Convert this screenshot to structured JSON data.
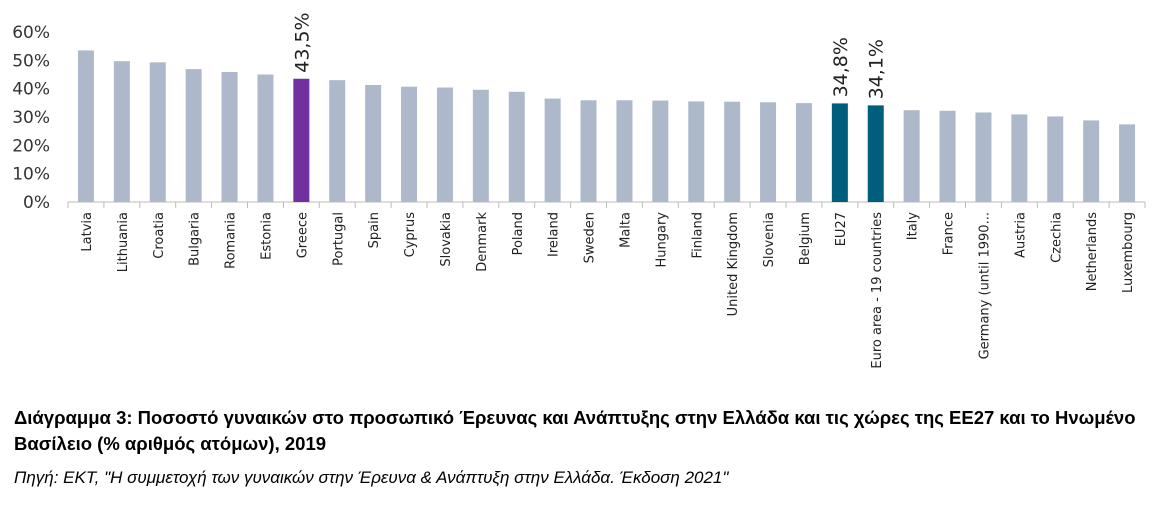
{
  "chart_data": {
    "type": "bar",
    "categories": [
      "Latvia",
      "Lithuania",
      "Croatia",
      "Bulgaria",
      "Romania",
      "Estonia",
      "Greece",
      "Portugal",
      "Spain",
      "Cyprus",
      "Slovakia",
      "Denmark",
      "Poland",
      "Ireland",
      "Sweden",
      "Malta",
      "Hungary",
      "Finland",
      "United Kingdom",
      "Slovenia",
      "Belgium",
      "EU27",
      "Euro area - 19 countries",
      "Italy",
      "France",
      "Germany (until 1990...",
      "Austria",
      "Czechia",
      "Netherlands",
      "Luxembourg"
    ],
    "values": [
      53.5,
      49.7,
      49.3,
      46.9,
      45.9,
      45.0,
      43.5,
      43.0,
      41.3,
      40.7,
      40.4,
      39.6,
      38.9,
      36.5,
      35.9,
      35.9,
      35.8,
      35.5,
      35.4,
      35.2,
      34.9,
      34.8,
      34.1,
      32.4,
      32.2,
      31.6,
      30.9,
      30.2,
      28.8,
      27.4
    ],
    "ylim": [
      0,
      60
    ],
    "yticks": [
      0,
      10,
      20,
      30,
      40,
      50,
      60
    ],
    "ytick_labels": [
      "0%",
      "10%",
      "20%",
      "30%",
      "40%",
      "50%",
      "60%"
    ],
    "data_labels": [
      {
        "category": "Greece",
        "text": "43,5%"
      },
      {
        "category": "EU27",
        "text": "34,8%"
      },
      {
        "category": "Euro area - 19 countries",
        "text": "34,1%"
      }
    ],
    "colors": {
      "default": "#adb9ca",
      "Greece": "#7030a0",
      "EU27": "#005e7d",
      "Euro area - 19 countries": "#005e7d"
    },
    "grid": false,
    "legend": "none"
  },
  "caption": {
    "title": "Διάγραμμα 3: Ποσοστό γυναικών στο προσωπικό Έρευνας και Ανάπτυξης στην Ελλάδα και τις χώρες της ΕΕ27 και το Ηνωμένο Βασίλειο (% αριθμός ατόμων), 2019",
    "source": "Πηγή: ΕΚΤ, \"Η συμμετοχή των γυναικών στην Έρευνα & Ανάπτυξη στην Ελλάδα. Έκδοση 2021\""
  }
}
